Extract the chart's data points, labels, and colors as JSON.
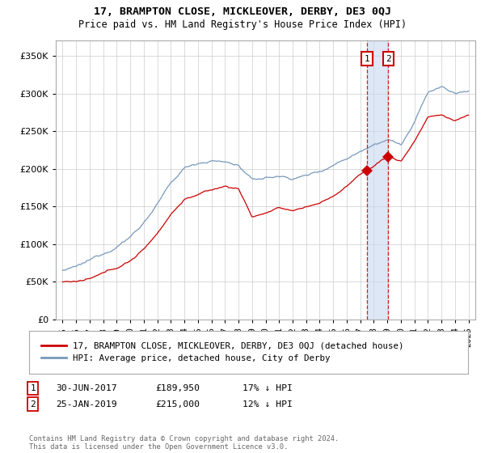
{
  "title": "17, BRAMPTON CLOSE, MICKLEOVER, DERBY, DE3 0QJ",
  "subtitle": "Price paid vs. HM Land Registry's House Price Index (HPI)",
  "legend_line1": "17, BRAMPTON CLOSE, MICKLEOVER, DERBY, DE3 0QJ (detached house)",
  "legend_line2": "HPI: Average price, detached house, City of Derby",
  "footnote": "Contains HM Land Registry data © Crown copyright and database right 2024.\nThis data is licensed under the Open Government Licence v3.0.",
  "transaction1_date": "30-JUN-2017",
  "transaction1_price": "£189,950",
  "transaction1_note": "17% ↓ HPI",
  "transaction2_date": "25-JAN-2019",
  "transaction2_price": "£215,000",
  "transaction2_note": "12% ↓ HPI",
  "transaction1_year": 2017.5,
  "transaction2_year": 2019.07,
  "red_line_color": "#cc0000",
  "blue_line_color": "#7799bb",
  "bg_color": "#ffffff",
  "grid_color": "#cccccc",
  "ylim_min": 0,
  "ylim_max": 370000,
  "xlim_min": 1994.5,
  "xlim_max": 2025.5,
  "yticks": [
    0,
    50000,
    100000,
    150000,
    200000,
    250000,
    300000,
    350000
  ],
  "xticks": [
    1995,
    1996,
    1997,
    1998,
    1999,
    2000,
    2001,
    2002,
    2003,
    2004,
    2005,
    2006,
    2007,
    2008,
    2009,
    2010,
    2011,
    2012,
    2013,
    2014,
    2015,
    2016,
    2017,
    2018,
    2019,
    2020,
    2021,
    2022,
    2023,
    2024,
    2025
  ],
  "hpi_knots_x": [
    1995,
    1996,
    1997,
    1998,
    1999,
    2000,
    2001,
    2002,
    2003,
    2004,
    2005,
    2006,
    2007,
    2008,
    2009,
    2010,
    2011,
    2012,
    2013,
    2014,
    2015,
    2016,
    2017,
    2018,
    2019,
    2020,
    2021,
    2022,
    2023,
    2024,
    2025
  ],
  "hpi_knots_y": [
    65000,
    68000,
    75000,
    85000,
    97000,
    110000,
    130000,
    155000,
    180000,
    200000,
    208000,
    212000,
    210000,
    206000,
    185000,
    188000,
    190000,
    188000,
    192000,
    198000,
    208000,
    218000,
    228000,
    240000,
    248000,
    240000,
    268000,
    308000,
    315000,
    305000,
    308000
  ],
  "red_knots_x": [
    1995,
    1996,
    1997,
    1998,
    1999,
    2000,
    2001,
    2002,
    2003,
    2004,
    2005,
    2006,
    2007,
    2008,
    2009,
    2010,
    2011,
    2012,
    2013,
    2014,
    2015,
    2016,
    2017,
    2018,
    2019,
    2020,
    2021,
    2022,
    2023,
    2024,
    2025
  ],
  "red_knots_y": [
    50000,
    50000,
    52000,
    58000,
    65000,
    75000,
    90000,
    112000,
    138000,
    158000,
    165000,
    170000,
    175000,
    172000,
    135000,
    140000,
    145000,
    142000,
    147000,
    152000,
    162000,
    175000,
    190000,
    202000,
    215000,
    208000,
    235000,
    268000,
    270000,
    262000,
    270000
  ]
}
